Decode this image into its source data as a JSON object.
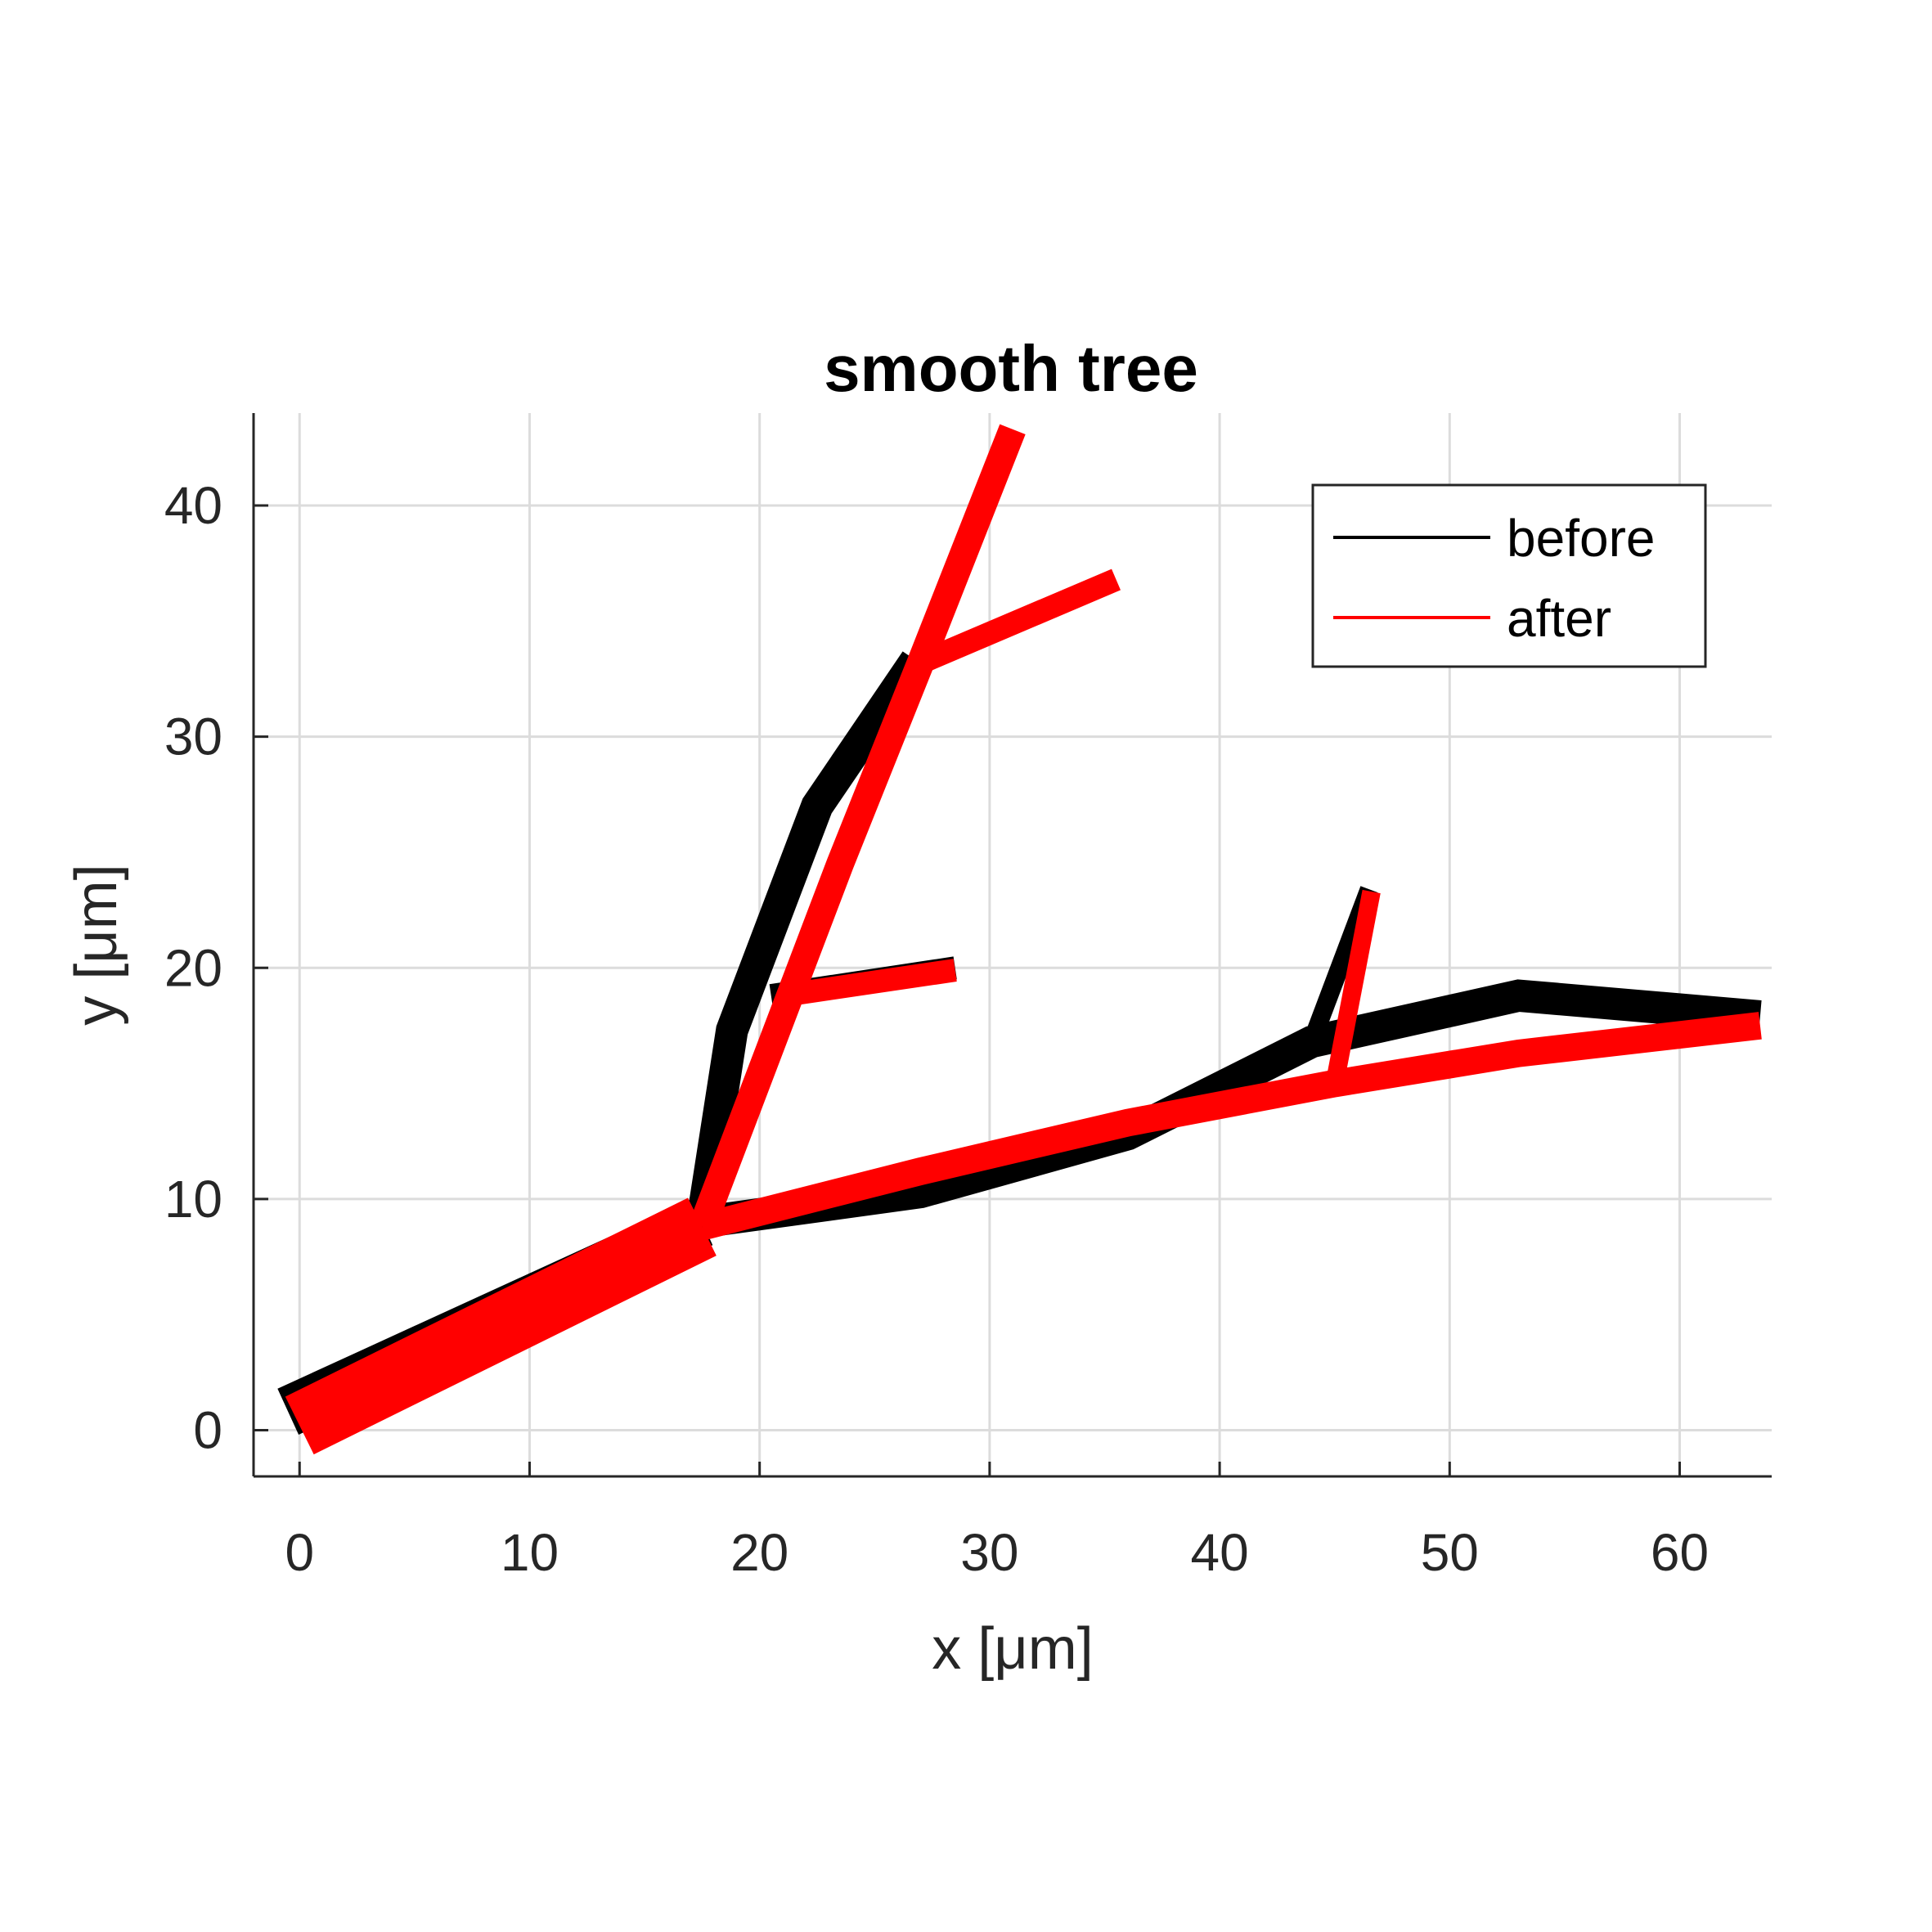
{
  "chart_data": {
    "type": "line",
    "title": "smooth tree",
    "xlabel": "x [μm]",
    "ylabel": "y [μm]",
    "xlim": [
      -2,
      64
    ],
    "ylim": [
      -2,
      44
    ],
    "xticks": [
      0,
      10,
      20,
      30,
      40,
      50,
      60
    ],
    "yticks": [
      0,
      10,
      20,
      30,
      40
    ],
    "grid": true,
    "legend_position": "top-right",
    "series": [
      {
        "name": "before",
        "color": "#000000",
        "segments": [
          {
            "points": [
              [
                -0.5,
                0.8
              ],
              [
                17.5,
                9.0
              ]
            ],
            "w": 2.2
          },
          {
            "points": [
              [
                17.5,
                9.0
              ],
              [
                27.0,
                10.3
              ],
              [
                36.0,
                12.8
              ],
              [
                44.0,
                16.8
              ],
              [
                53.0,
                18.8
              ],
              [
                63.5,
                17.9
              ]
            ],
            "w": 1.4
          },
          {
            "points": [
              [
                17.5,
                9.0
              ],
              [
                18.8,
                17.3
              ],
              [
                22.5,
                27.0
              ],
              [
                26.8,
                33.3
              ]
            ],
            "w": 1.4
          },
          {
            "points": [
              [
                20.5,
                18.8
              ],
              [
                28.5,
                20.0
              ]
            ],
            "w": 1.0
          },
          {
            "points": [
              [
                44.0,
                16.8
              ],
              [
                46.5,
                23.4
              ]
            ],
            "w": 0.8
          }
        ]
      },
      {
        "name": "after",
        "color": "#ff0000",
        "segments": [
          {
            "points": [
              [
                0.0,
                0.2
              ],
              [
                17.5,
                8.8
              ]
            ],
            "w": 2.8
          },
          {
            "points": [
              [
                17.5,
                8.8
              ],
              [
                27.0,
                11.2
              ],
              [
                36.0,
                13.3
              ],
              [
                45.0,
                15.0
              ],
              [
                53.0,
                16.3
              ],
              [
                63.5,
                17.5
              ]
            ],
            "w": 1.2
          },
          {
            "points": [
              [
                17.5,
                8.8
              ],
              [
                23.5,
                24.5
              ],
              [
                27.0,
                33.2
              ],
              [
                31.0,
                43.3
              ]
            ],
            "w": 1.2
          },
          {
            "points": [
              [
                21.0,
                18.8
              ],
              [
                28.5,
                19.9
              ]
            ],
            "w": 1.0
          },
          {
            "points": [
              [
                27.0,
                33.2
              ],
              [
                35.5,
                36.8
              ]
            ],
            "w": 1.0
          },
          {
            "points": [
              [
                45.0,
                15.0
              ],
              [
                46.6,
                23.3
              ]
            ],
            "w": 0.8
          }
        ]
      }
    ]
  }
}
